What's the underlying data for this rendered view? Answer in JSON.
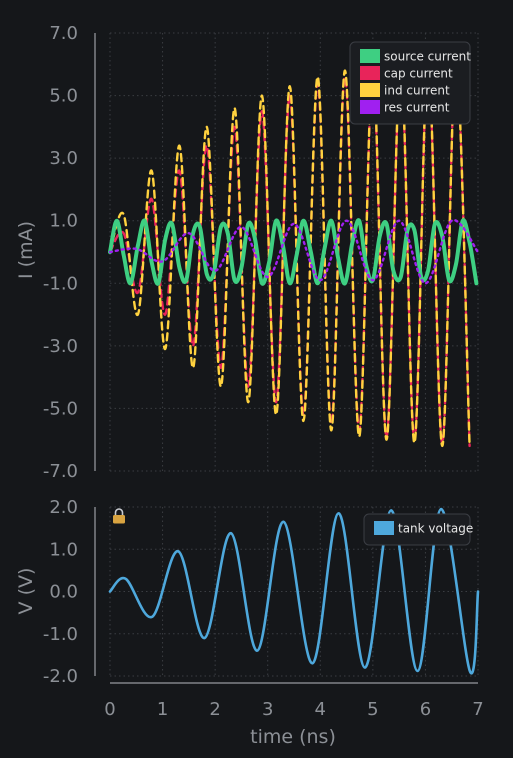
{
  "colors": {
    "background": "#15171a",
    "axis": "#b6bac0",
    "tick_text": "#8c9096",
    "grid": "#3a3d42",
    "legend_bg": "#1b1d21",
    "legend_border": "#3b3e44",
    "legend_text": "#e6e6e6",
    "lock_icon": "#d9a441"
  },
  "chart_data": [
    {
      "type": "line",
      "ylabel": "I (mA)",
      "ylim": [
        -7,
        7
      ],
      "yticks": [
        "7.0",
        "5.0",
        "3.0",
        "1.0",
        "-1.0",
        "-3.0",
        "-5.0",
        "-7.0"
      ],
      "xlim": [
        0,
        7
      ],
      "grid": true,
      "legend_position": "top-right",
      "source_frequency_ghz": 1.9,
      "resonance_frequency_ghz": 1.8,
      "series": [
        {
          "name": "source current",
          "color": "#3ecf82",
          "style": "solid",
          "description": "sinusoid amplitude ~1.0 mA",
          "x": [
            0.0,
            0.13,
            0.26,
            0.39,
            0.53,
            0.66,
            0.79,
            0.92,
            1.05,
            1.18,
            1.32,
            1.45,
            1.58,
            1.71,
            1.84,
            1.97,
            2.11,
            2.24,
            2.37,
            2.5,
            2.63,
            2.76,
            2.89,
            3.03,
            3.16,
            3.29,
            3.42,
            3.55,
            3.68,
            3.82,
            3.95,
            4.08,
            4.21,
            4.34,
            4.47,
            4.61,
            4.74,
            4.87,
            5.0,
            5.13,
            5.26,
            5.39,
            5.53,
            5.66,
            5.79,
            5.92,
            6.05,
            6.18,
            6.32,
            6.45,
            6.58,
            6.71,
            6.84,
            6.97
          ],
          "values": [
            0.0,
            1.0,
            -0.1,
            -1.0,
            0.2,
            1.0,
            -0.3,
            -1.0,
            0.4,
            0.9,
            -0.5,
            -0.9,
            0.6,
            0.8,
            -0.7,
            -0.7,
            0.8,
            0.6,
            -0.9,
            -0.5,
            0.9,
            0.4,
            -1.0,
            -0.3,
            1.0,
            0.2,
            -1.0,
            -0.1,
            1.0,
            0.0,
            -1.0,
            0.1,
            1.0,
            -0.2,
            -1.0,
            0.3,
            1.0,
            -0.4,
            -0.9,
            0.5,
            0.9,
            -0.6,
            -0.8,
            0.7,
            0.7,
            -0.8,
            -0.6,
            0.9,
            0.5,
            -0.9,
            -0.4,
            1.0,
            0.3,
            -1.0
          ]
        },
        {
          "name": "cap current",
          "color": "#e8245a",
          "style": "dashed",
          "description": "growing oscillation, envelope ~0.34+0.66·t^0.62 mA",
          "x": [
            0.0,
            0.26,
            0.53,
            0.79,
            1.05,
            1.32,
            1.58,
            1.84,
            2.11,
            2.37,
            2.63,
            2.89,
            3.16,
            3.42,
            3.68,
            3.95,
            4.21,
            4.47,
            4.74,
            5.0,
            5.26,
            5.53,
            5.79,
            6.05,
            6.32,
            6.58,
            6.84
          ],
          "values": [
            0.0,
            0.6,
            -1.3,
            1.7,
            -2.0,
            2.6,
            -3.0,
            3.4,
            -3.7,
            4.0,
            -4.3,
            4.5,
            -4.8,
            5.0,
            -5.2,
            5.4,
            -5.5,
            5.6,
            -5.7,
            5.8,
            -5.9,
            6.0,
            -6.0,
            6.1,
            -6.1,
            6.2,
            -6.2
          ]
        },
        {
          "name": "ind current",
          "color": "#ffd23f",
          "style": "dashed",
          "description": "opposite phase to cap current, slightly smaller",
          "x": [
            0.0,
            0.26,
            0.53,
            0.79,
            1.05,
            1.32,
            1.58,
            1.84,
            2.11,
            2.37,
            2.63,
            2.89,
            3.16,
            3.42,
            3.68,
            3.95,
            4.21,
            4.47,
            4.74,
            5.0,
            5.26,
            5.53,
            5.79,
            6.05,
            6.32,
            6.58,
            6.84
          ],
          "values": [
            0.0,
            1.2,
            -2.0,
            2.6,
            -3.1,
            3.4,
            -3.7,
            4.0,
            -4.3,
            4.6,
            -4.8,
            5.0,
            -5.2,
            5.3,
            -5.4,
            5.6,
            -5.7,
            5.8,
            -5.9,
            6.0,
            -6.0,
            6.1,
            -6.1,
            6.2,
            -6.2,
            6.2,
            -6.2
          ]
        },
        {
          "name": "res current",
          "color": "#a020f0",
          "style": "dotted",
          "description": "in phase with tank voltage, amplitude ~ |V| / 2",
          "x": [
            0.0,
            0.5,
            1.0,
            1.5,
            2.0,
            2.5,
            3.0,
            3.5,
            4.0,
            4.5,
            5.0,
            5.5,
            6.0,
            6.5,
            7.0
          ],
          "values": [
            0.0,
            0.1,
            -0.3,
            0.6,
            -0.6,
            0.8,
            -0.8,
            0.9,
            -0.9,
            1.0,
            -0.9,
            1.0,
            -1.0,
            1.0,
            0.0
          ]
        }
      ]
    },
    {
      "type": "line",
      "xlabel": "time (ns)",
      "ylabel": "V (V)",
      "ylim": [
        -2,
        2
      ],
      "yticks": [
        "2.0",
        "1.0",
        "0.0",
        "-1.0",
        "-2.0"
      ],
      "xlim": [
        0,
        7
      ],
      "xticks": [
        "0",
        "1",
        "2",
        "3",
        "4",
        "5",
        "6",
        "7"
      ],
      "grid": true,
      "legend_position": "top-right",
      "series": [
        {
          "name": "tank voltage",
          "color": "#4ea8dc",
          "style": "solid",
          "description": "growing oscillation; peaks 0.3@0.3, 0.95@1.3, 1.4@2.3, 1.7@3.3, 1.85@4.35, 1.92@5.3, 1.95@6.3 V",
          "x": [
            0.0,
            0.3,
            0.8,
            1.3,
            1.8,
            2.3,
            2.8,
            3.3,
            3.85,
            4.35,
            4.85,
            5.35,
            5.85,
            6.3,
            6.85,
            7.0
          ],
          "values": [
            0.0,
            0.3,
            -0.6,
            0.95,
            -1.1,
            1.38,
            -1.4,
            1.65,
            -1.7,
            1.85,
            -1.8,
            1.92,
            -1.88,
            1.95,
            -1.9,
            0.0
          ]
        }
      ]
    }
  ]
}
